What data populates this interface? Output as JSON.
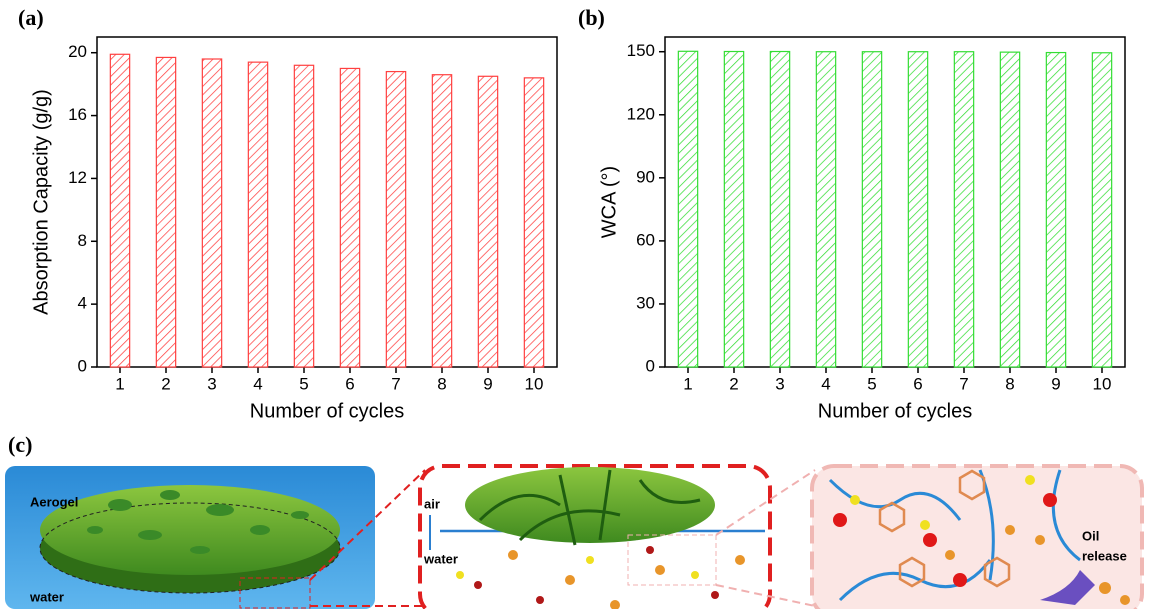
{
  "chart_data": [
    {
      "type": "bar",
      "panel": "(a)",
      "y_label": "Absorption Capacity (g/g)",
      "x_label": "Number of cycles",
      "categories": [
        "1",
        "2",
        "3",
        "4",
        "5",
        "6",
        "7",
        "8",
        "9",
        "10"
      ],
      "values": [
        19.9,
        19.7,
        19.6,
        19.4,
        19.2,
        19.0,
        18.8,
        18.6,
        18.5,
        18.4
      ],
      "color": "#ff4040",
      "ylim": [
        0,
        21
      ],
      "yticks": [
        0,
        4,
        8,
        12,
        16,
        20
      ]
    },
    {
      "type": "bar",
      "panel": "(b)",
      "y_label": "WCA (°)",
      "x_label": "Number of cycles",
      "categories": [
        "1",
        "2",
        "3",
        "4",
        "5",
        "6",
        "7",
        "8",
        "9",
        "10"
      ],
      "values": [
        150.2,
        150.1,
        150.1,
        150.0,
        150.0,
        150.0,
        150.0,
        149.8,
        149.6,
        149.5
      ],
      "color": "#33dd33",
      "ylim": [
        0,
        157
      ],
      "yticks": [
        0,
        30,
        60,
        90,
        120,
        150
      ]
    }
  ],
  "diagram": {
    "panel": "(c)",
    "aerogel": "Aerogel",
    "water_left": "water",
    "air": "air",
    "water_mid": "water",
    "oil_line1": "Oil",
    "oil_line2": "release"
  }
}
